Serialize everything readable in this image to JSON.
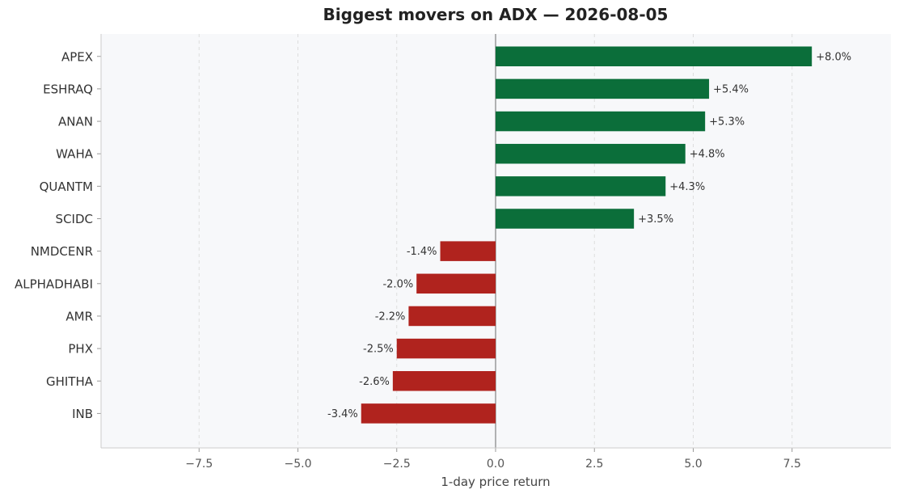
{
  "chart_data": {
    "type": "bar",
    "orientation": "horizontal",
    "title": "Biggest movers on ADX — 2026-08-05",
    "xlabel": "1-day price return",
    "ylabel": "",
    "xlim": [
      -10,
      10
    ],
    "xticks": [
      -7.5,
      -5.0,
      -2.5,
      0.0,
      2.5,
      5.0,
      7.5
    ],
    "xtick_labels": [
      "−7.5",
      "−5.0",
      "−2.5",
      "0.0",
      "2.5",
      "5.0",
      "7.5"
    ],
    "grid": "x-dashed",
    "categories": [
      "APEX",
      "ESHRAQ",
      "ANAN",
      "WAHA",
      "QUANTM",
      "SCIDC",
      "NMDCENR",
      "ALPHADHABI",
      "AMR",
      "PHX",
      "GHITHA",
      "INB"
    ],
    "values": [
      8.0,
      5.4,
      5.3,
      4.8,
      4.3,
      3.5,
      -1.4,
      -2.0,
      -2.2,
      -2.5,
      -2.6,
      -3.4
    ],
    "data_labels": [
      "+8.0%",
      "+5.4%",
      "+5.3%",
      "+4.8%",
      "+4.3%",
      "+3.5%",
      "-1.4%",
      "-2.0%",
      "-2.2%",
      "-2.5%",
      "-2.6%",
      "-3.4%"
    ],
    "colors": {
      "positive": "#0b6e3a",
      "negative": "#b0231e",
      "plot_bg": "#f7f8fa",
      "zero_line": "#999999"
    }
  }
}
